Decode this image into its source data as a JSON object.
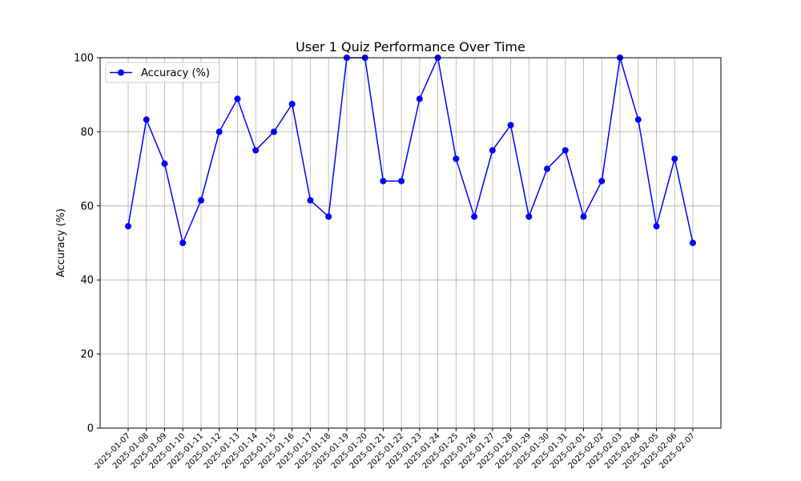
{
  "chart_data": {
    "type": "line",
    "title": "User 1 Quiz Performance Over Time",
    "xlabel": "",
    "ylabel": "Accuracy (%)",
    "ylim": [
      0,
      100
    ],
    "yticks": [
      0,
      20,
      40,
      60,
      80,
      100
    ],
    "grid": true,
    "legend_position": "top-left",
    "categories": [
      "2025-01-07",
      "2025-01-08",
      "2025-01-09",
      "2025-01-10",
      "2025-01-11",
      "2025-01-12",
      "2025-01-13",
      "2025-01-14",
      "2025-01-15",
      "2025-01-16",
      "2025-01-17",
      "2025-01-18",
      "2025-01-19",
      "2025-01-20",
      "2025-01-21",
      "2025-01-22",
      "2025-01-23",
      "2025-01-24",
      "2025-01-25",
      "2025-01-26",
      "2025-01-27",
      "2025-01-28",
      "2025-01-29",
      "2025-01-30",
      "2025-01-31",
      "2025-02-01",
      "2025-02-02",
      "2025-02-03",
      "2025-02-04",
      "2025-02-05",
      "2025-02-06",
      "2025-02-07"
    ],
    "series": [
      {
        "name": "Accuracy (%)",
        "color": "#0000ff",
        "marker": "circle",
        "values": [
          54.5,
          83.3,
          71.4,
          50.0,
          61.5,
          80.0,
          88.9,
          75.0,
          80.0,
          87.5,
          61.5,
          57.1,
          100.0,
          100.0,
          66.7,
          66.7,
          88.9,
          100.0,
          72.7,
          57.1,
          75.0,
          81.8,
          57.1,
          70.0,
          75.0,
          57.1,
          66.7,
          100.0,
          83.3,
          54.5,
          72.7,
          50.0
        ]
      }
    ]
  }
}
